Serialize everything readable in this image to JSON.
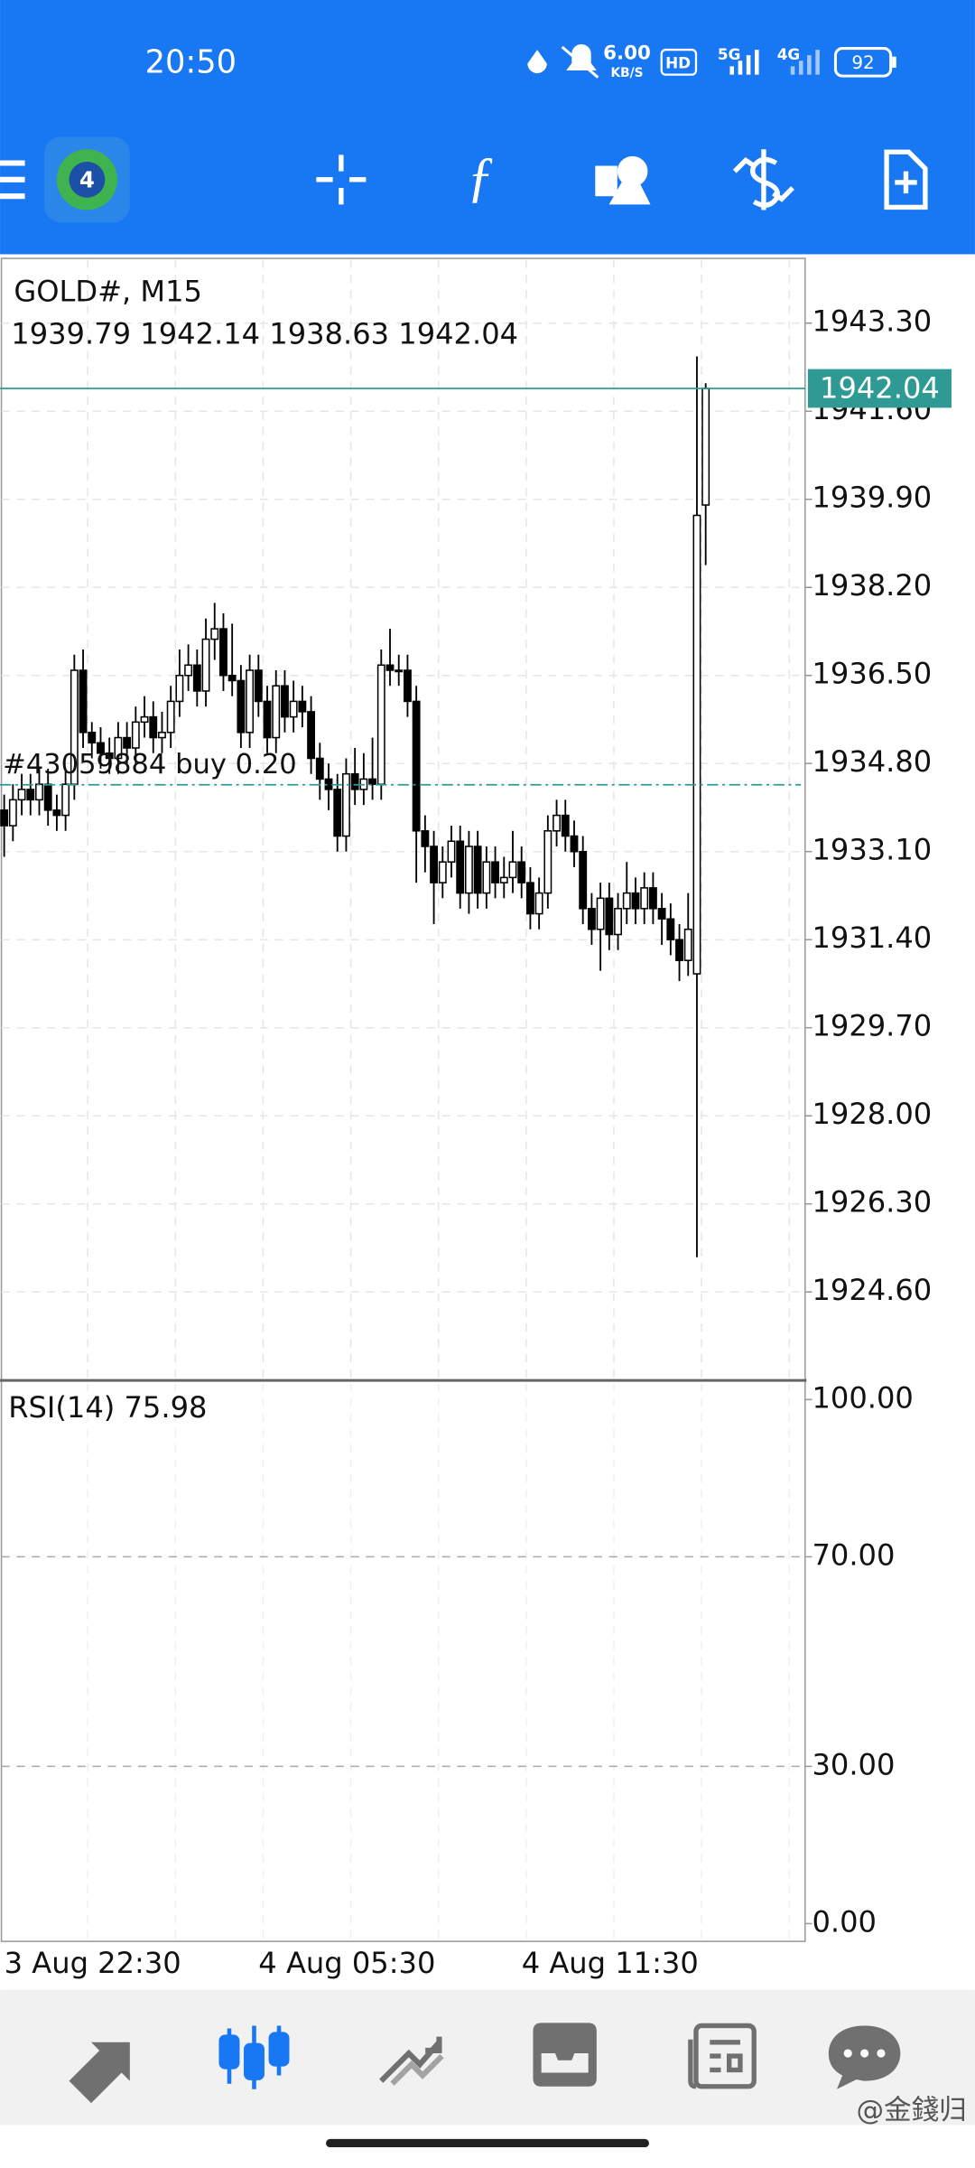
{
  "status_bar": {
    "time": "20:50",
    "speed": "6.00",
    "speed_unit": "KB/S",
    "hd": "HD",
    "net": "5G",
    "net2": "4G",
    "battery": "92"
  },
  "chart_data": [
    {
      "type": "candlestick",
      "title": "GOLD#, M15",
      "categories": [
        "3 Aug 22:30",
        null,
        null,
        null,
        null,
        null,
        null,
        null,
        null,
        null,
        null,
        null,
        null,
        null,
        null,
        null,
        null,
        null,
        null,
        null,
        null,
        null,
        null,
        null,
        null,
        null,
        null,
        null,
        null,
        "4 Aug 05:30",
        null,
        null,
        null,
        null,
        null,
        null,
        null,
        null,
        null,
        null,
        null,
        null,
        null,
        null,
        null,
        null,
        null,
        null,
        null,
        null,
        null,
        null,
        null,
        null,
        null,
        null,
        null,
        null,
        null,
        "4 Aug 11:30",
        null,
        null,
        null,
        null,
        null,
        null,
        null,
        null,
        null,
        null,
        null,
        null,
        null,
        null,
        null,
        null,
        null,
        null,
        null,
        null,
        null
      ],
      "open": [
        1933.9,
        1933.6,
        1934.1,
        1934.3,
        1934.1,
        1934.4,
        1933.9,
        1933.8,
        1934.4,
        1936.6,
        1935.4,
        1935.2,
        1935.0,
        1934.9,
        1935.3,
        1935.1,
        1935.6,
        1935.7,
        1935.3,
        1935.4,
        1936.0,
        1936.5,
        1936.7,
        1936.2,
        1937.2,
        1937.4,
        1936.5,
        1936.4,
        1935.4,
        1936.6,
        1936.0,
        1935.3,
        1936.3,
        1935.7,
        1936.0,
        1935.8,
        1934.9,
        1934.5,
        1934.3,
        1933.4,
        1934.6,
        1934.3,
        1934.5,
        1934.4,
        1936.7,
        1936.6,
        1936.6,
        1936.0,
        1933.5,
        1933.2,
        1932.5,
        1932.9,
        1933.3,
        1932.3,
        1933.2,
        1932.3,
        1932.9,
        1932.5,
        1932.6,
        1932.9,
        1932.5,
        1931.9,
        1932.3,
        1933.5,
        1933.8,
        1933.4,
        1933.1,
        1932.0,
        1931.6,
        1932.2,
        1931.5,
        1932.0,
        1932.3,
        1932.0,
        1932.4,
        1932.0,
        1931.8,
        1931.4,
        1931.0,
        1930.74,
        1939.79
      ],
      "high": [
        1934.2,
        1934.4,
        1934.6,
        1934.6,
        1934.7,
        1934.7,
        1934.2,
        1934.7,
        1936.9,
        1937.0,
        1935.6,
        1935.5,
        1935.3,
        1935.6,
        1935.6,
        1935.9,
        1936.1,
        1936.0,
        1935.8,
        1936.3,
        1937.0,
        1937.1,
        1937.0,
        1937.6,
        1937.9,
        1937.7,
        1937.5,
        1936.7,
        1936.9,
        1936.9,
        1936.3,
        1936.6,
        1936.6,
        1936.4,
        1936.3,
        1936.1,
        1935.2,
        1934.8,
        1934.6,
        1934.9,
        1935.1,
        1935.0,
        1935.3,
        1937.0,
        1937.4,
        1936.9,
        1936.9,
        1936.3,
        1933.8,
        1933.5,
        1933.2,
        1933.6,
        1933.6,
        1933.5,
        1933.5,
        1933.2,
        1933.2,
        1933.0,
        1933.5,
        1933.2,
        1932.8,
        1932.6,
        1933.8,
        1934.1,
        1934.1,
        1933.7,
        1933.4,
        1932.3,
        1932.5,
        1932.5,
        1932.3,
        1932.9,
        1932.6,
        1932.7,
        1932.7,
        1932.3,
        1932.1,
        1931.7,
        1932.3,
        1942.66,
        1942.14
      ],
      "low": [
        1933.0,
        1933.3,
        1933.8,
        1933.8,
        1933.8,
        1933.6,
        1933.5,
        1933.5,
        1934.1,
        1935.1,
        1934.9,
        1934.7,
        1934.6,
        1934.6,
        1934.8,
        1934.8,
        1935.3,
        1935.0,
        1935.0,
        1935.1,
        1935.7,
        1936.2,
        1935.9,
        1935.9,
        1936.8,
        1936.2,
        1936.1,
        1935.1,
        1935.1,
        1935.7,
        1935.0,
        1935.0,
        1935.4,
        1935.4,
        1935.5,
        1934.6,
        1934.1,
        1933.9,
        1933.1,
        1933.1,
        1934.0,
        1934.0,
        1934.1,
        1934.1,
        1936.3,
        1936.3,
        1935.7,
        1932.5,
        1932.7,
        1931.7,
        1932.2,
        1932.6,
        1932.0,
        1931.9,
        1932.0,
        1932.0,
        1932.2,
        1932.2,
        1932.3,
        1932.2,
        1931.6,
        1931.6,
        1932.0,
        1933.2,
        1933.1,
        1932.8,
        1931.7,
        1931.3,
        1930.8,
        1931.2,
        1931.2,
        1931.7,
        1931.7,
        1931.7,
        1931.7,
        1931.3,
        1931.1,
        1930.6,
        1930.7,
        1925.27,
        1938.63
      ],
      "close": [
        1933.6,
        1934.1,
        1934.3,
        1934.1,
        1934.4,
        1933.9,
        1933.8,
        1934.4,
        1936.6,
        1935.4,
        1935.2,
        1935.0,
        1934.9,
        1935.3,
        1935.1,
        1935.6,
        1935.7,
        1935.3,
        1935.4,
        1936.0,
        1936.5,
        1936.7,
        1936.2,
        1937.2,
        1937.4,
        1936.5,
        1936.4,
        1935.4,
        1936.6,
        1936.0,
        1935.3,
        1936.3,
        1935.7,
        1936.0,
        1935.8,
        1934.9,
        1934.5,
        1934.3,
        1933.4,
        1934.6,
        1934.3,
        1934.5,
        1934.4,
        1936.7,
        1936.6,
        1936.6,
        1936.0,
        1933.5,
        1933.2,
        1932.5,
        1932.9,
        1933.3,
        1932.3,
        1933.2,
        1932.3,
        1932.9,
        1932.5,
        1932.6,
        1932.9,
        1932.5,
        1931.9,
        1932.3,
        1933.5,
        1933.8,
        1933.4,
        1933.1,
        1932.0,
        1931.6,
        1932.2,
        1931.5,
        1932.0,
        1932.3,
        1932.0,
        1932.4,
        1932.0,
        1931.8,
        1931.4,
        1931.0,
        1931.6,
        1939.59,
        1942.04
      ],
      "ylim": [
        1922.92,
        1944.55
      ],
      "yticks": [
        {
          "value": 1943.3,
          "label": "1943.30"
        },
        {
          "value": 1941.6,
          "label": "1941.60"
        },
        {
          "value": 1939.9,
          "label": "1939.90"
        },
        {
          "value": 1938.2,
          "label": "1938.20"
        },
        {
          "value": 1936.5,
          "label": "1936.50"
        },
        {
          "value": 1934.8,
          "label": "1934.80"
        },
        {
          "value": 1933.1,
          "label": "1933.10"
        },
        {
          "value": 1931.4,
          "label": "1931.40"
        },
        {
          "value": 1929.7,
          "label": "1929.70"
        },
        {
          "value": 1928.0,
          "label": "1928.00"
        },
        {
          "value": 1926.3,
          "label": "1926.30"
        },
        {
          "value": 1924.6,
          "label": "1924.60"
        }
      ],
      "grid": true,
      "up_color": "#ffffff",
      "down_color": "#000000",
      "price_line_color": "#2f9a94",
      "order": {
        "label": "#43059884 buy 0.20",
        "price": 1934.39
      }
    },
    {
      "type": "indicator",
      "title": "RSI(14)",
      "current_value": 75.98,
      "ylim": [
        -3.4,
        103.4
      ],
      "yticks": [
        {
          "value": 100,
          "label": "100.00"
        },
        {
          "value": 70,
          "label": "70.00"
        },
        {
          "value": 30,
          "label": "30.00"
        },
        {
          "value": 0,
          "label": "0.00"
        }
      ],
      "levels": [
        70,
        30
      ]
    }
  ],
  "watermark": "@金錢归"
}
